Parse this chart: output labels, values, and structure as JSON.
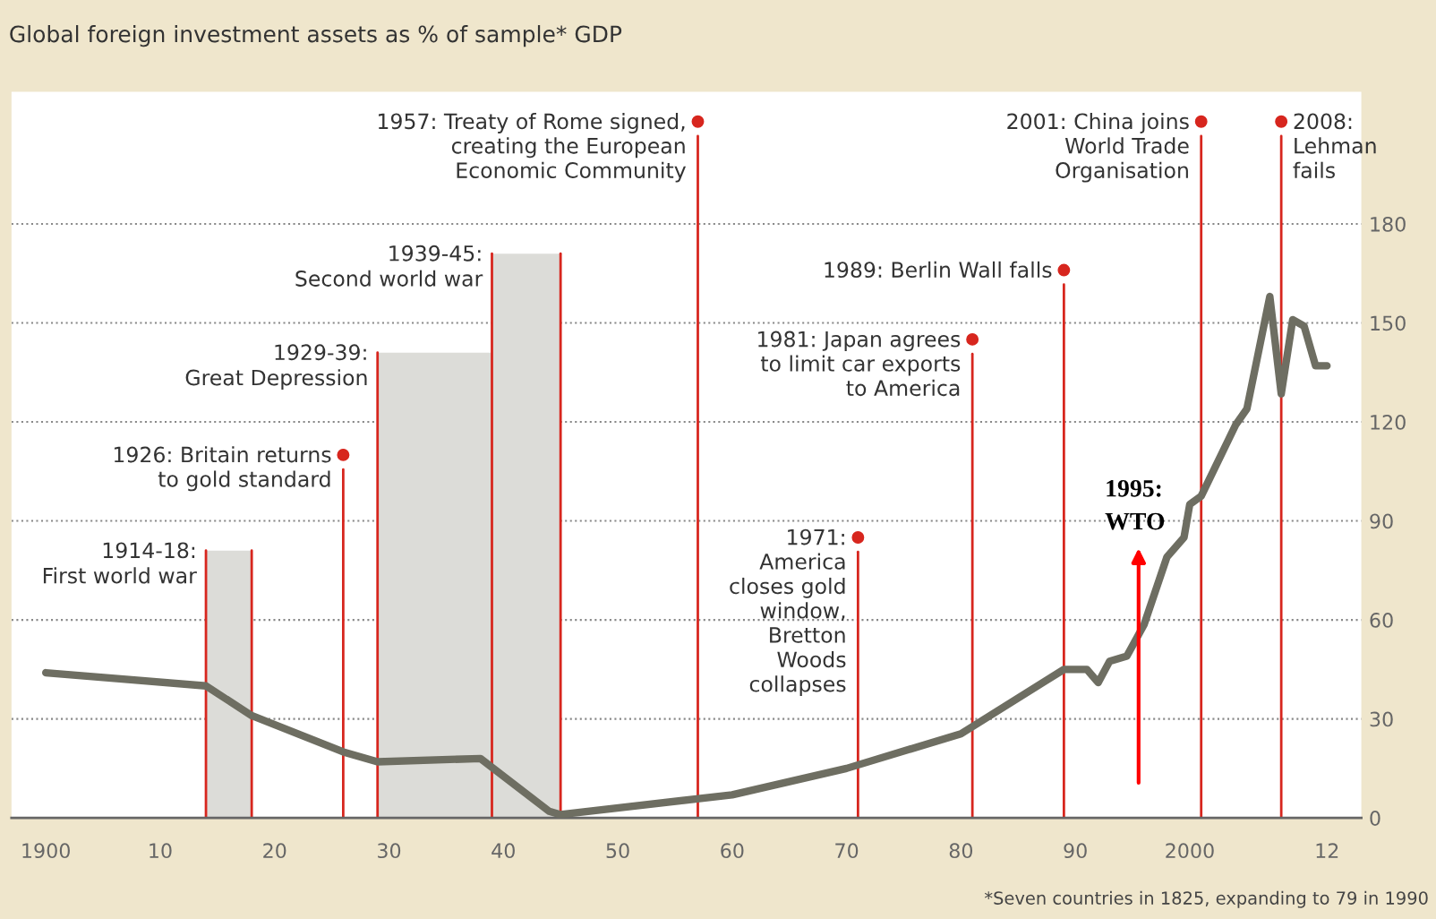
{
  "chart_data": {
    "type": "line",
    "title": "Global foreign investment assets as % of sample* GDP",
    "x": [
      1900,
      1914,
      1918,
      1926,
      1929,
      1938,
      1944,
      1945,
      1960,
      1970,
      1980,
      1989,
      1991,
      1992,
      1993,
      1994.5,
      1996,
      1998,
      1999.5,
      2000,
      2001,
      2004,
      2005,
      2007,
      2008,
      2009,
      2010,
      2011,
      2012
    ],
    "series": [
      {
        "color": "#6e6e62",
        "values": [
          44,
          40,
          31,
          20,
          17,
          18,
          2,
          1,
          7,
          15,
          25.5,
          45,
          45,
          41,
          47.5,
          49,
          58.5,
          79,
          85,
          95,
          97.5,
          119,
          124,
          158,
          128.5,
          151,
          149,
          137,
          137
        ]
      }
    ],
    "xlim": [
      1897,
      2015
    ],
    "ylim": [
      0,
      220
    ],
    "xticks": [
      {
        "value": 1900,
        "label": "1900"
      },
      {
        "value": 1910,
        "label": "10"
      },
      {
        "value": 1920,
        "label": "20"
      },
      {
        "value": 1930,
        "label": "30"
      },
      {
        "value": 1940,
        "label": "40"
      },
      {
        "value": 1950,
        "label": "50"
      },
      {
        "value": 1960,
        "label": "60"
      },
      {
        "value": 1970,
        "label": "70"
      },
      {
        "value": 1980,
        "label": "80"
      },
      {
        "value": 1990,
        "label": "90"
      },
      2000,
      {
        "value": 2012,
        "label": "12"
      }
    ],
    "yticks": [
      0,
      30,
      60,
      90,
      120,
      150,
      180
    ],
    "grid": "y",
    "marker": "none",
    "line_style": "solid",
    "legend": false,
    "bands": [
      {
        "axis": "x",
        "from": 1914,
        "to": 1918,
        "color": "#dcdcd8"
      },
      {
        "axis": "x",
        "from": 1929,
        "to": 1939,
        "color": "#dcdcd8"
      },
      {
        "axis": "x",
        "from": 1939,
        "to": 1945,
        "color": "#dcdcd8"
      }
    ],
    "ref_lines": [
      {
        "axis": "x",
        "value": 1914,
        "color": "#d7261e"
      },
      {
        "axis": "x",
        "value": 1918,
        "color": "#d7261e"
      },
      {
        "axis": "x",
        "value": 1929,
        "color": "#d7261e"
      },
      {
        "axis": "x",
        "value": 1939,
        "color": "#d7261e"
      },
      {
        "axis": "x",
        "value": 1945,
        "color": "#d7261e"
      },
      {
        "axis": "x",
        "value": 1926,
        "color": "#d7261e"
      },
      {
        "axis": "x",
        "value": 1957,
        "color": "#d7261e"
      },
      {
        "axis": "x",
        "value": 1971,
        "color": "#d7261e"
      },
      {
        "axis": "x",
        "value": 1981,
        "color": "#d7261e"
      },
      {
        "axis": "x",
        "value": 1989,
        "color": "#d7261e"
      },
      {
        "axis": "x",
        "value": 2001,
        "color": "#d7261e"
      },
      {
        "axis": "x",
        "value": 2008,
        "color": "#d7261e"
      }
    ],
    "annotations": [
      {
        "text": "1914-18:\nFirst world war",
        "x": 1914,
        "y": 81
      },
      {
        "text": "1926: Britain returns\nto gold standard",
        "x": 1926,
        "y": 110
      },
      {
        "text": "1929-39:\nGreat Depression",
        "x": 1929,
        "y": 141
      },
      {
        "text": "1939-45:\nSecond world war",
        "x": 1939,
        "y": 171
      },
      {
        "text": "1957: Treaty of Rome signed,\ncreating the European\nEconomic Community",
        "x": 1957,
        "y": 211
      },
      {
        "text": "1971:\nAmerica\ncloses gold\nwindow,\nBretton\nWoods\ncollapses",
        "x": 1971,
        "y": 85
      },
      {
        "text": "1981: Japan agrees\nto limit car exports\nto America",
        "x": 1981,
        "y": 145
      },
      {
        "text": "1989: Berlin Wall falls",
        "x": 1989,
        "y": 166
      },
      {
        "text": "2001: China joins\nWorld Trade\nOrganisation",
        "x": 2001,
        "y": 211
      },
      {
        "text": "2008:\nLehman\nfails",
        "x": 2008,
        "y": 211
      },
      "1995:\nWTO",
      "*Seven countries in 1825, expanding to 79 in 1990"
    ]
  }
}
